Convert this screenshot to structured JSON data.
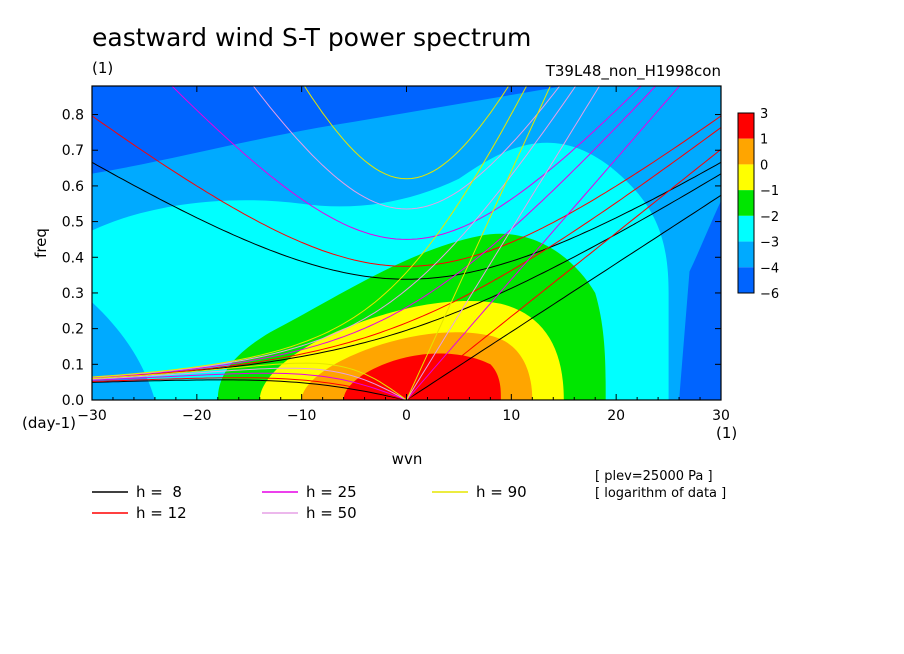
{
  "header": {
    "title": "eastward wind S-T power spectrum",
    "subtitle_left": "(1)",
    "subtitle_right": "T39L48_non_H1998con"
  },
  "notes": [
    "[ plev=25000 Pa ]",
    "[ logarithm of data ]"
  ],
  "chart_data": {
    "type": "heatmap",
    "title": "eastward wind S-T power spectrum",
    "xlabel": "wvn",
    "ylabel": "freq",
    "x_unit_label": "(1)",
    "y_unit_label": "(day-1)",
    "xlim": [
      -30,
      30
    ],
    "ylim": [
      0,
      0.88
    ],
    "x_ticks": [
      -30,
      -20,
      -10,
      0,
      10,
      20,
      30
    ],
    "x_tick_labels": [
      "−30",
      "−20",
      "−10",
      "0",
      "10",
      "20",
      "30"
    ],
    "y_ticks": [
      0,
      0.1,
      0.2,
      0.3,
      0.4,
      0.5,
      0.6,
      0.7,
      0.8
    ],
    "y_tick_labels": [
      "0.0",
      "0.1",
      "0.2",
      "0.3",
      "0.4",
      "0.5",
      "0.6",
      "0.7",
      "0.8"
    ],
    "colorbar": {
      "labels": [
        "3",
        "1",
        "0",
        "−1",
        "−2",
        "−3",
        "−4",
        "−6"
      ],
      "colors": [
        "#ff0000",
        "#ffa500",
        "#ffff00",
        "#00e600",
        "#00ffff",
        "#00aaff",
        "#0064ff"
      ]
    },
    "contour_levels": [
      {
        "level": "−4",
        "color": "#00aaff"
      },
      {
        "level": "−3",
        "color": "#00ffff"
      },
      {
        "level": "−2",
        "color": "#00e600"
      },
      {
        "level": "−1",
        "color": "#ffff00"
      },
      {
        "level": "0",
        "color": "#ffa500"
      },
      {
        "level": "1",
        "color": "#ff0000"
      }
    ],
    "background_color": "#0064ff",
    "dispersion_curves": [
      {
        "label": "h =  8",
        "h": 8,
        "color": "#000000"
      },
      {
        "label": "h = 12",
        "h": 12,
        "color": "#ff0000"
      },
      {
        "label": "h = 25",
        "h": 25,
        "color": "#e600e6"
      },
      {
        "label": "h = 50",
        "h": 50,
        "color": "#e6a0e6"
      },
      {
        "label": "h = 90",
        "h": 90,
        "color": "#e6e600"
      }
    ]
  }
}
